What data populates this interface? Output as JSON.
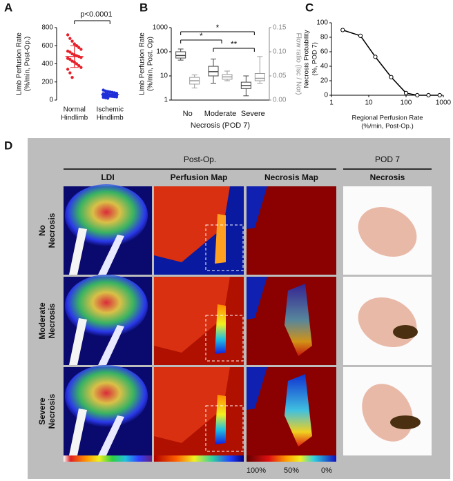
{
  "chart_data": [
    {
      "type": "strip",
      "panel": "A",
      "ylabel": [
        "Limb Perfusion Rate",
        "(%/min, Post-Op.)"
      ],
      "categories": [
        [
          "Normal",
          "Hindlimb"
        ],
        [
          "Ischemic",
          "Hindlimb"
        ]
      ],
      "groups": [
        {
          "color": "#e8202a",
          "values": [
            720,
            680,
            650,
            620,
            600,
            580,
            560,
            540,
            530,
            510,
            500,
            490,
            480,
            470,
            460,
            450,
            430,
            420,
            400,
            380,
            360,
            340,
            300,
            250
          ],
          "mean": 480,
          "sd": 120
        },
        {
          "color": "#1f2fd8",
          "values": [
            110,
            100,
            95,
            90,
            85,
            80,
            75,
            70,
            68,
            65,
            60,
            58,
            55,
            52,
            50,
            48,
            45,
            42,
            40,
            38,
            35,
            30,
            25,
            20
          ],
          "mean": 60,
          "sd": 25
        }
      ],
      "annotation": "p<0.0001",
      "ylim": [
        0,
        800
      ],
      "yticks": [
        0,
        200,
        400,
        600,
        800
      ]
    },
    {
      "type": "box",
      "panel": "B",
      "ylabel": [
        "Limb Perfusion Rate",
        "(%/min, Post. Op)"
      ],
      "y2label": "Flow ratio (Isc / Nor)",
      "xlabel": "Necrosis (POD 7)",
      "categories": [
        "No",
        "Moderate",
        "Severe"
      ],
      "log": true,
      "ylim": [
        1,
        1000
      ],
      "yticks": [
        1,
        10,
        100,
        1000
      ],
      "y2lim": [
        0,
        0.15
      ],
      "y2ticks": [
        {
          "value": 0,
          "label": "0.00"
        },
        {
          "value": 0.05,
          "label": "0.05"
        },
        {
          "value": 0.1,
          "label": "0.10"
        },
        {
          "value": 0.15,
          "label": "0.15"
        }
      ],
      "series": [
        {
          "color": "#444444",
          "values": [
            {
              "min": 45,
              "q1": 55,
              "median": 70,
              "q3": 100,
              "max": 130
            },
            {
              "min": 5,
              "q1": 10,
              "median": 15,
              "q3": 25,
              "max": 50
            },
            {
              "min": 1.5,
              "q1": 3,
              "median": 4,
              "q3": 5.5,
              "max": 10
            }
          ]
        },
        {
          "color": "#9a9a9a",
          "axis": "y2",
          "values": [
            {
              "min": 0.025,
              "q1": 0.033,
              "median": 0.04,
              "q3": 0.047,
              "max": 0.052
            },
            {
              "min": 0.04,
              "q1": 0.043,
              "median": 0.048,
              "q3": 0.053,
              "max": 0.06
            },
            {
              "min": 0.035,
              "q1": 0.04,
              "median": 0.045,
              "q3": 0.055,
              "max": 0.09
            }
          ]
        }
      ],
      "brackets": [
        {
          "from": "No",
          "to": "Severe",
          "label": "*"
        },
        {
          "from": "No",
          "to": "Moderate",
          "label": "*"
        },
        {
          "from": "Moderate",
          "to": "Severe",
          "label": "**"
        }
      ]
    },
    {
      "type": "line",
      "panel": "C",
      "xlabel": [
        "Regional Perfusion Rate",
        "(%/min, Post-Op.)"
      ],
      "ylabel": [
        "Necrosis Probability",
        "(%, POD 7)"
      ],
      "xlog": true,
      "x": [
        2,
        6,
        15,
        40,
        100,
        200,
        400,
        800
      ],
      "values": [
        90,
        82,
        53,
        25,
        3,
        0,
        0,
        0
      ],
      "color": "#000000",
      "xlim": [
        1,
        1000
      ],
      "xticks": [
        1,
        10,
        100,
        1000
      ],
      "ylim": [
        0,
        100
      ],
      "yticks": [
        0,
        20,
        40,
        60,
        80,
        100
      ]
    }
  ],
  "figure_d": {
    "panel": "D",
    "groups": [
      {
        "title": "Post-Op.",
        "columns": [
          "LDI",
          "Perfusion Map",
          "Necrosis Map"
        ]
      },
      {
        "title": "POD 7",
        "columns": [
          "Necrosis"
        ]
      }
    ],
    "rows": [
      [
        "No",
        "Necrosis"
      ],
      [
        "Moderate",
        "Necrosis"
      ],
      [
        "Severe",
        "Necrosis"
      ]
    ],
    "scale_labels": [
      "100%",
      "50%",
      "0%"
    ]
  }
}
